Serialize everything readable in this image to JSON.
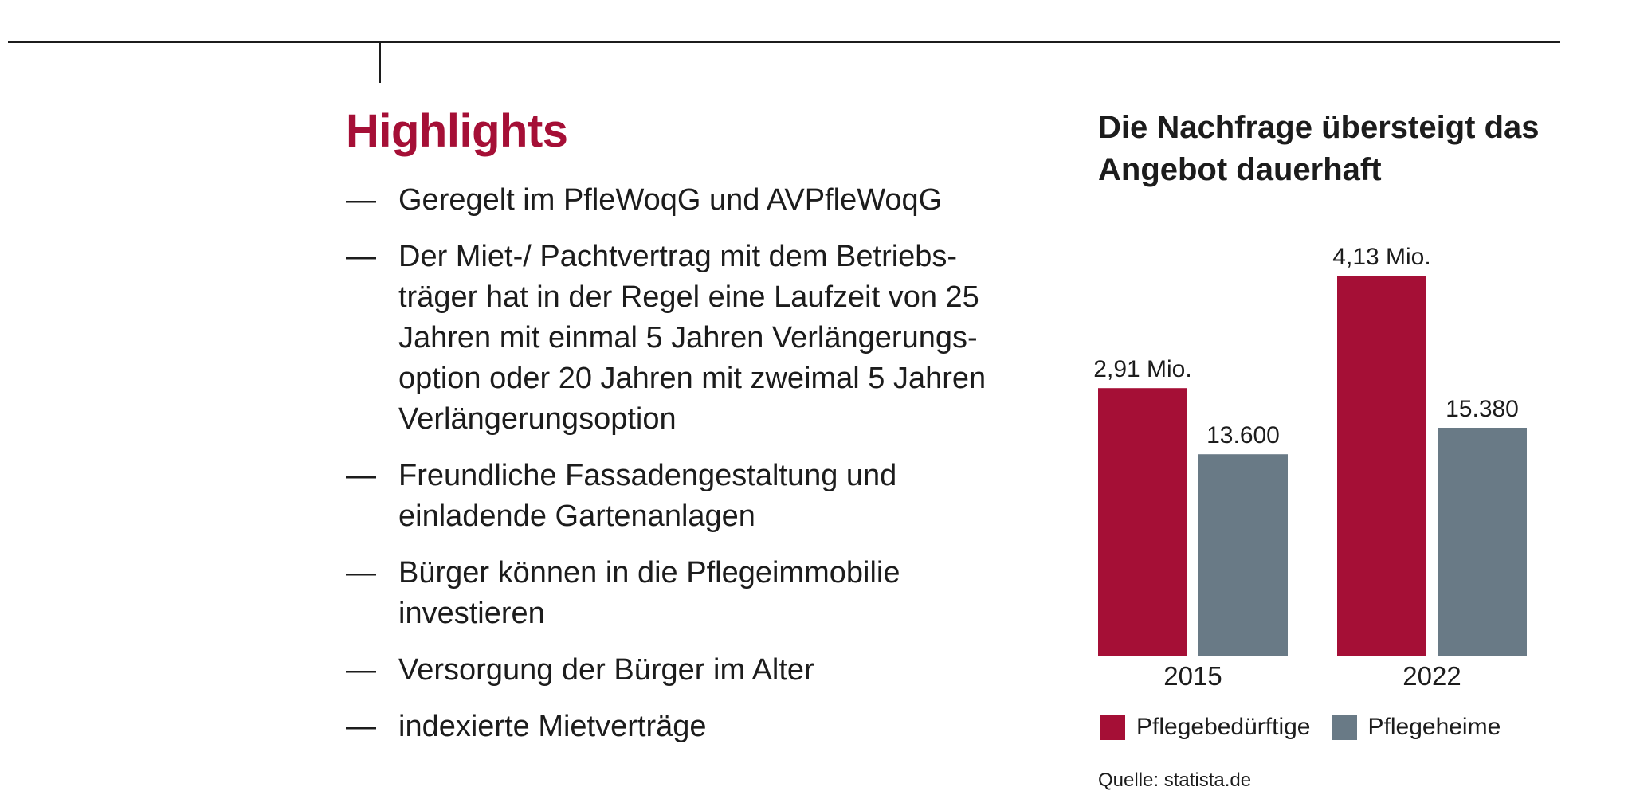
{
  "highlights": {
    "title": "Highlights",
    "dash": "—",
    "items": [
      [
        "Geregelt im PfleWoqG und AVPfleWoqG"
      ],
      [
        "Der Miet-/ Pachtvertrag mit dem Betriebs-",
        "träger hat in der Regel eine Laufzeit von 25",
        "Jahren mit einmal 5 Jahren Verlängerungs-",
        "option oder 20 Jahren mit zweimal 5 Jahren",
        "Verlängerungsoption"
      ],
      [
        "Freundliche Fassadengestaltung und",
        "einladende Gartenanlagen"
      ],
      [
        "Bürger können in die Pflegeimmobilie",
        "investieren"
      ],
      [
        "Versorgung der Bürger im Alter"
      ],
      [
        "indexierte Mietverträge"
      ]
    ]
  },
  "chart_data": {
    "type": "bar",
    "title": "Die Nachfrage übersteigt das Angebot dauerhaft",
    "categories": [
      "2015",
      "2022"
    ],
    "series": [
      {
        "name": "Pflegebedürftige",
        "values": [
          2.91,
          4.13
        ],
        "labels": [
          "2,91 Mio.",
          "4,13 Mio."
        ],
        "color": "#a50f36"
      },
      {
        "name": "Pflegeheime",
        "values": [
          13600,
          15380
        ],
        "labels": [
          "13.600",
          "15.380"
        ],
        "color": "#697a86"
      }
    ],
    "series_ymax": [
      4.13,
      15380
    ],
    "legend": "bottom",
    "grid": false,
    "source": "Quelle: statista.de"
  }
}
